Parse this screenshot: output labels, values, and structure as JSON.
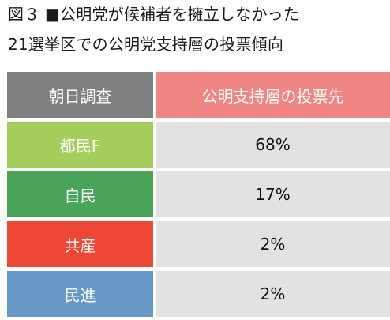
{
  "caption": {
    "line1": "図３ ■公明党が候補者を擁立しなかった",
    "line2": "21選挙区での公明党支持層の投票傾向"
  },
  "colors": {
    "header_label_bg": "#7f7f7f",
    "header_value_bg": "#f08683",
    "value_bg": "#e2e2e2",
    "row_label_bg": [
      "#a4cd5b",
      "#4aa55a",
      "#ee4637",
      "#6798c8"
    ]
  },
  "chart_data": {
    "type": "table",
    "columns": [
      "朝日調査",
      "公明支持層の投票先"
    ],
    "rows": [
      {
        "party": "都民F",
        "value": 68,
        "display": "68%"
      },
      {
        "party": "自民",
        "value": 17,
        "display": "17%"
      },
      {
        "party": "共産",
        "value": 2,
        "display": "2%"
      },
      {
        "party": "民進",
        "value": 2,
        "display": "2%"
      }
    ]
  }
}
